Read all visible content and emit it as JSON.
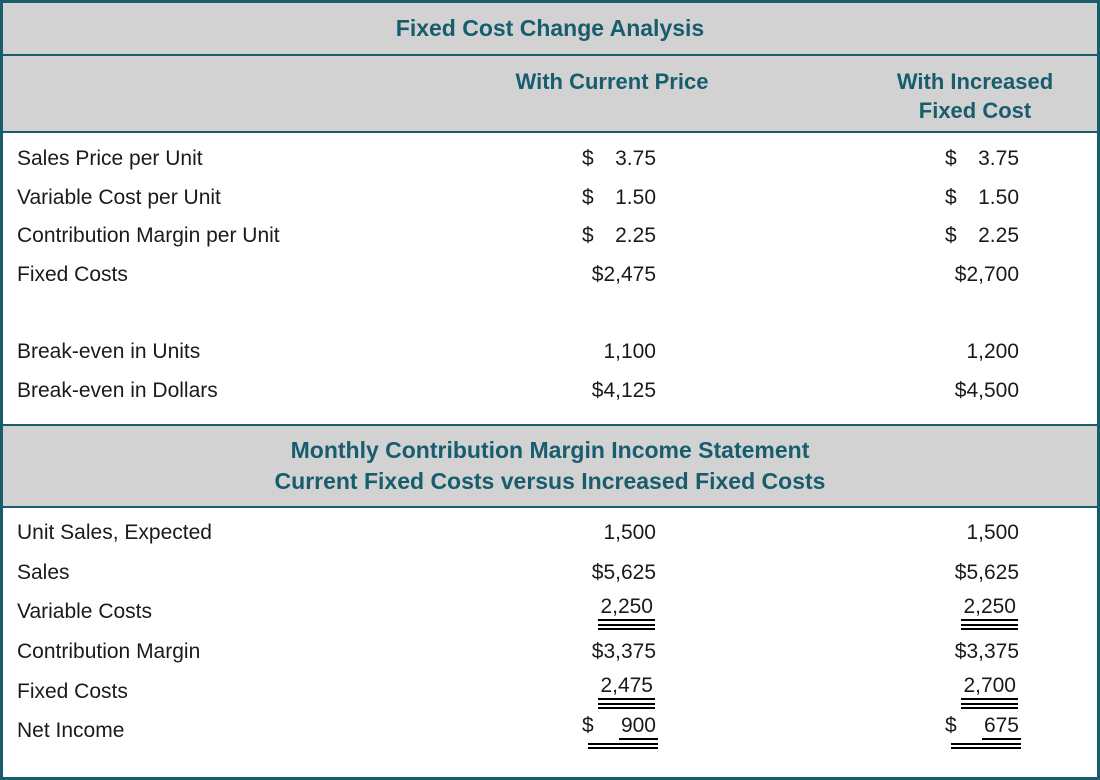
{
  "colors": {
    "accent_teal": "#175d6d",
    "band_gray": "#d2d2d2",
    "body_text": "#1a1a1a",
    "background": "#ffffff"
  },
  "title": "Fixed Cost Change Analysis",
  "columns": {
    "col1": "With Current Price",
    "col2_line1": "With Increased",
    "col2_line2": "Fixed Cost"
  },
  "section1": {
    "rows": [
      {
        "label": "Sales Price per Unit",
        "c1": {
          "cur": "$",
          "num": "3.75"
        },
        "c2": {
          "cur": "$",
          "num": "3.75"
        }
      },
      {
        "label": "Variable Cost per Unit",
        "c1": {
          "cur": "$",
          "num": "1.50"
        },
        "c2": {
          "cur": "$",
          "num": "1.50"
        }
      },
      {
        "label": "Contribution Margin per Unit",
        "c1": {
          "cur": "$",
          "num": "2.25"
        },
        "c2": {
          "cur": "$",
          "num": "2.25"
        }
      },
      {
        "label": "Fixed Costs",
        "c1": {
          "num": "$2,475"
        },
        "c2": {
          "num": "$2,700"
        }
      },
      {
        "label": "",
        "c1": null,
        "c2": null
      },
      {
        "label": "Break-even in Units",
        "c1": {
          "num": "1,100"
        },
        "c2": {
          "num": "1,200"
        }
      },
      {
        "label": "Break-even in Dollars",
        "c1": {
          "num": "$4,125"
        },
        "c2": {
          "num": "$4,500"
        }
      }
    ]
  },
  "section2_header": {
    "line1": "Monthly Contribution Margin Income Statement",
    "line2": "Current Fixed Costs versus Increased Fixed Costs"
  },
  "section2": {
    "rows": [
      {
        "label": "Unit Sales, Expected",
        "c1": {
          "num": "1,500"
        },
        "c2": {
          "num": "1,500"
        }
      },
      {
        "label": "Sales",
        "c1": {
          "num": "$5,625"
        },
        "c2": {
          "num": "$5,625"
        }
      },
      {
        "label": "Variable Costs",
        "c1": {
          "num": "2,250",
          "ul": true
        },
        "c2": {
          "num": "2,250",
          "ul": true
        }
      },
      {
        "label": "Contribution Margin",
        "c1": {
          "num": "$3,375"
        },
        "c2": {
          "num": "$3,375"
        }
      },
      {
        "label": "Fixed Costs",
        "c1": {
          "num": "2,475",
          "ul": true
        },
        "c2": {
          "num": "2,700",
          "ul": true
        }
      },
      {
        "label": "Net Income",
        "c1": {
          "cur": "$",
          "num": "900",
          "ul": true
        },
        "c2": {
          "cur": "$",
          "num": "675",
          "ul": true
        }
      }
    ]
  }
}
